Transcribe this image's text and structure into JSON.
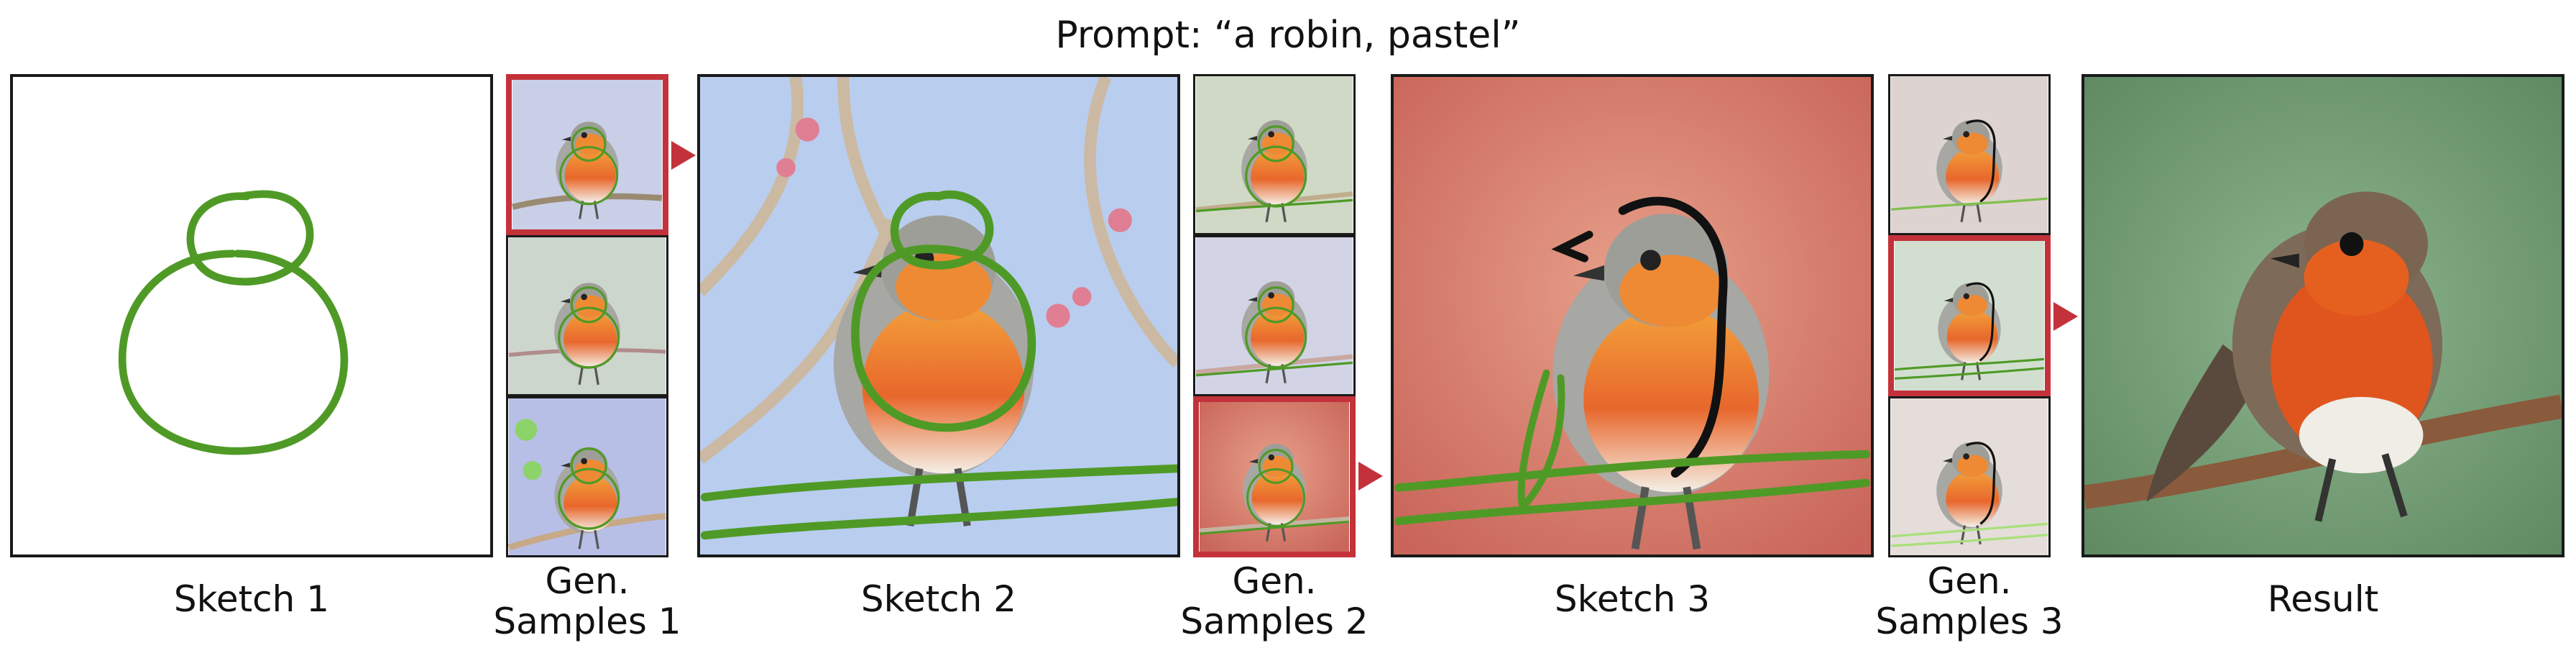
{
  "title": "Prompt: “a robin, pastel”",
  "labels": {
    "sketch1": "Sketch 1",
    "gen1": [
      "Gen.",
      "Samples 1"
    ],
    "sketch2": "Sketch 2",
    "gen2": [
      "Gen.",
      "Samples 2"
    ],
    "sketch3": "Sketch 3",
    "gen3": [
      "Gen.",
      "Samples 3"
    ],
    "result": "Result"
  },
  "colors": {
    "stroke_green": "#4f9a26",
    "selection_red": "#c3323a",
    "border": "#1a1a1a"
  },
  "selected_samples": {
    "gen1": 0,
    "gen2": 2,
    "gen3": 1
  }
}
